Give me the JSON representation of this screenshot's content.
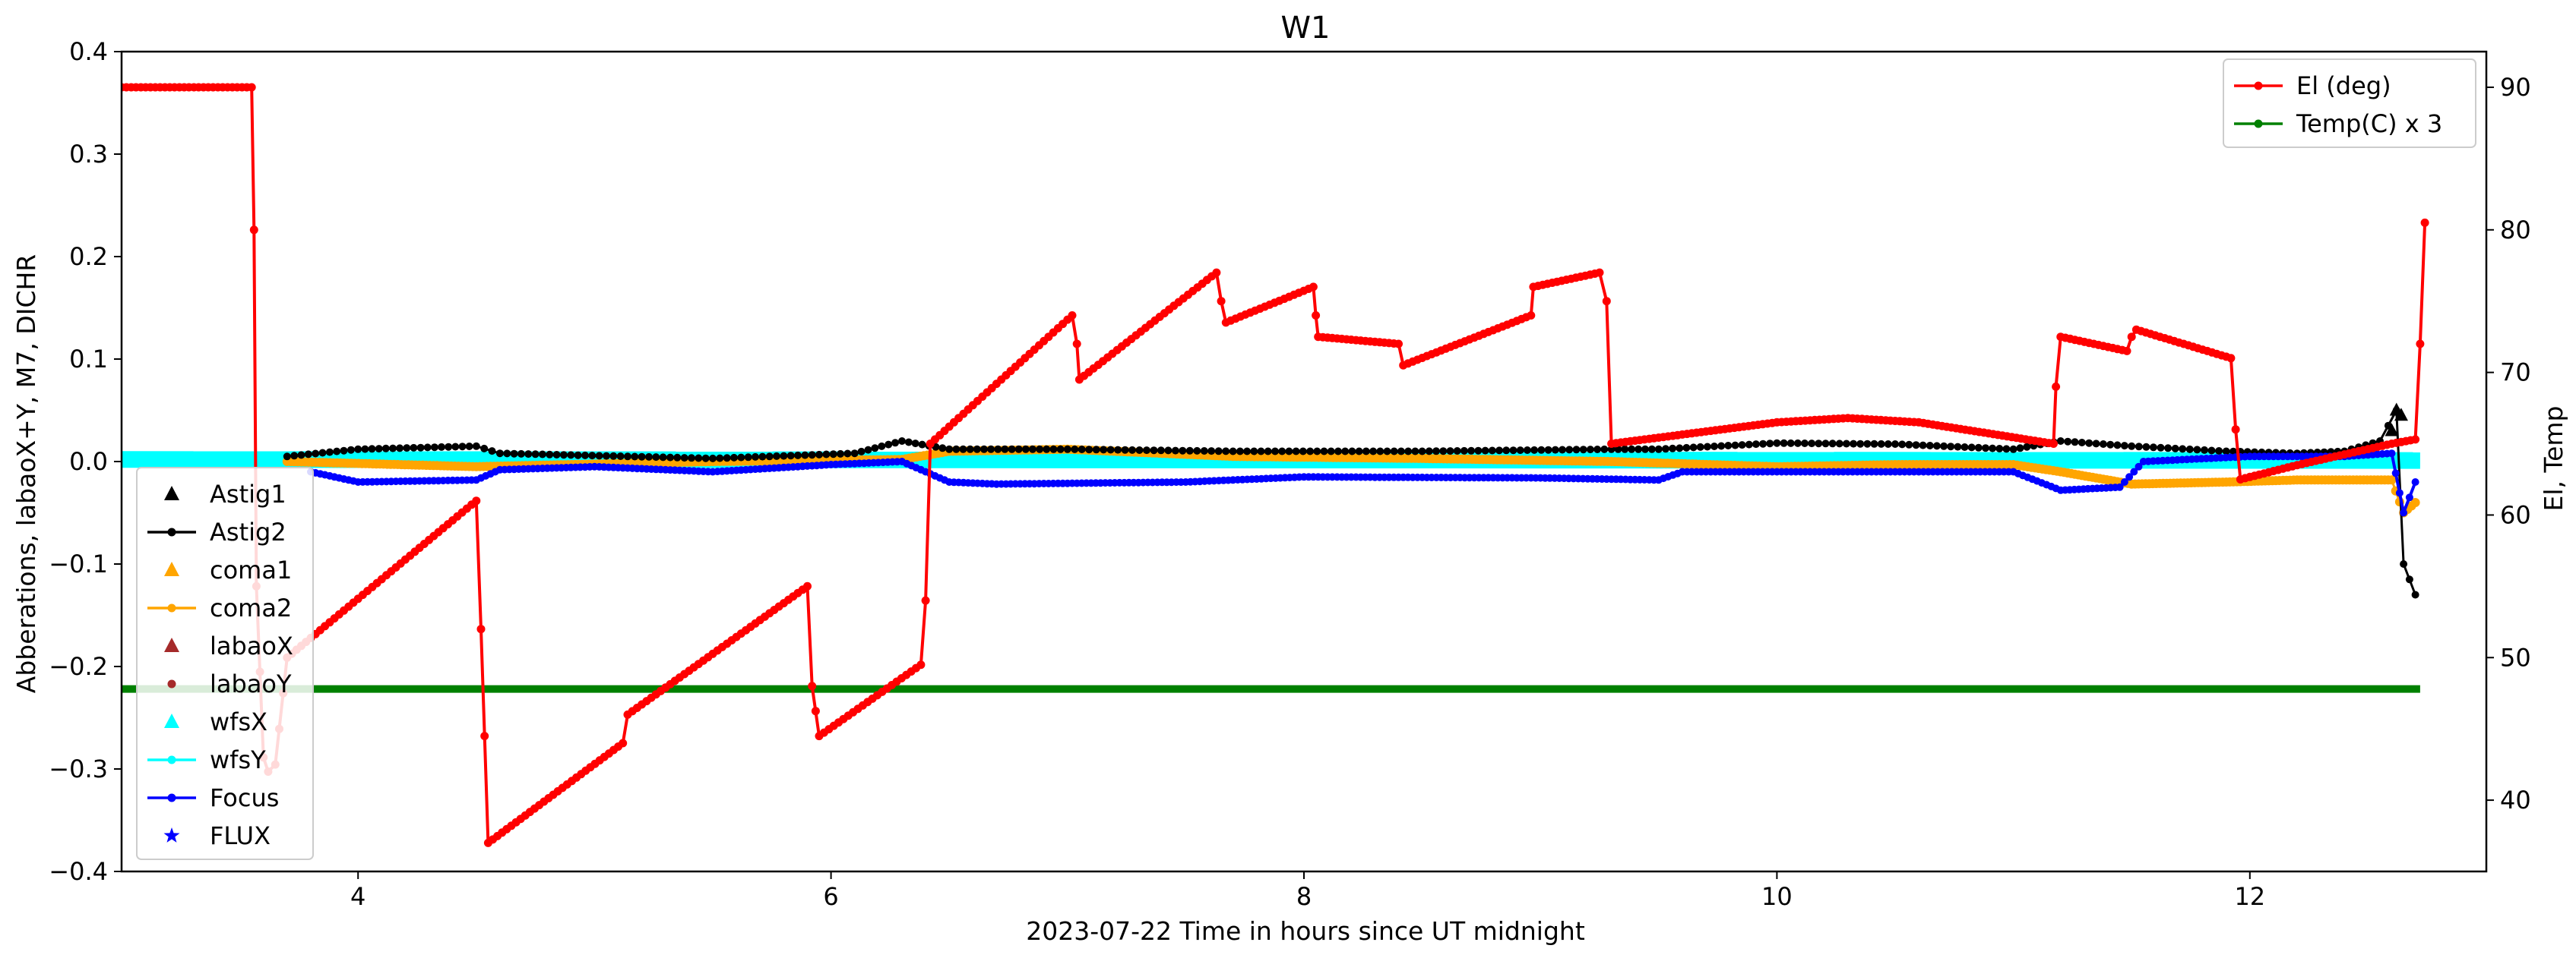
{
  "chart_data": {
    "type": "line",
    "title": "W1",
    "xlabel": "2023-07-22  Time in hours since UT midnight",
    "ylabel_left": "Abberations, labaoX+Y, M7, DICHR",
    "ylabel_right": "El, Temp",
    "xlim": [
      3.0,
      13.0
    ],
    "ylim_left": [
      -0.4,
      0.4
    ],
    "ylim_right": [
      35,
      92.5
    ],
    "x_ticks": [
      "4",
      "6",
      "8",
      "10",
      "12"
    ],
    "y_left_ticks": [
      "0.4",
      "0.3",
      "0.2",
      "0.1",
      "0.0",
      "−0.1",
      "−0.2",
      "−0.3",
      "−0.4"
    ],
    "y_right_ticks": [
      "90",
      "80",
      "70",
      "60",
      "50",
      "40"
    ],
    "legend_left": {
      "placement": "lower-left",
      "entries": [
        {
          "label": "Astig1",
          "marker": "triangle",
          "color": "#000000",
          "line": false
        },
        {
          "label": "Astig2",
          "marker": "dot",
          "color": "#000000",
          "line": true
        },
        {
          "label": "coma1",
          "marker": "triangle",
          "color": "#ffa500",
          "line": false
        },
        {
          "label": "coma2",
          "marker": "dot",
          "color": "#ffa500",
          "line": true
        },
        {
          "label": "labaoX",
          "marker": "triangle",
          "color": "#a52a2a",
          "line": false
        },
        {
          "label": "labaoY",
          "marker": "dot",
          "color": "#a52a2a",
          "line": false
        },
        {
          "label": "wfsX",
          "marker": "triangle",
          "color": "#00ffff",
          "line": false
        },
        {
          "label": "wfsY",
          "marker": "dot",
          "color": "#00ffff",
          "line": true
        },
        {
          "label": "Focus",
          "marker": "dot",
          "color": "#0000ff",
          "line": true
        },
        {
          "label": "FLUX",
          "marker": "star",
          "color": "#0000ff",
          "line": false
        }
      ]
    },
    "legend_right": {
      "placement": "top-right",
      "entries": [
        {
          "label": "El (deg)",
          "marker": "dot",
          "color": "#ff0000",
          "line": true
        },
        {
          "label": "Temp(C) x 3",
          "marker": "dot",
          "color": "#008000",
          "line": true
        }
      ]
    },
    "series": [
      {
        "name": "El (deg)",
        "axis": "right",
        "color": "#ff0000",
        "x": [
          3.0,
          3.55,
          3.56,
          3.57,
          3.6,
          3.62,
          3.65,
          3.7,
          4.5,
          4.52,
          4.55,
          5.12,
          5.14,
          5.9,
          5.92,
          5.95,
          6.38,
          6.4,
          6.42,
          7.02,
          7.04,
          7.05,
          7.63,
          7.65,
          7.67,
          8.04,
          8.05,
          8.06,
          8.4,
          8.42,
          8.96,
          8.97,
          9.25,
          9.28,
          9.3,
          10.0,
          10.3,
          10.6,
          11.17,
          11.18,
          11.2,
          11.48,
          11.5,
          11.52,
          11.92,
          11.94,
          11.96,
          12.2,
          12.6,
          12.7,
          12.72,
          12.74
        ],
        "y": [
          90,
          90,
          80,
          55,
          43,
          42,
          42.5,
          50,
          61,
          52,
          37,
          44,
          46,
          55,
          48,
          44.5,
          49.5,
          54,
          65,
          74,
          72,
          69.5,
          77,
          75,
          73.5,
          76,
          74,
          72.5,
          72,
          70.5,
          74,
          76,
          77,
          75,
          65,
          66.5,
          66.8,
          66.5,
          65,
          69,
          72.5,
          71.5,
          72.5,
          73,
          71,
          66,
          62.5,
          63.5,
          65,
          65.3,
          72,
          80.5
        ]
      },
      {
        "name": "Temp(C) x 3",
        "axis": "right",
        "color": "#008000",
        "x": [
          3.0,
          12.72
        ],
        "y": [
          47.8,
          47.8
        ]
      },
      {
        "name": "Astig2",
        "axis": "left",
        "color": "#000000",
        "x": [
          3.7,
          4.0,
          4.5,
          4.6,
          5.5,
          6.1,
          6.3,
          6.5,
          7.0,
          7.7,
          8.5,
          9.3,
          9.5,
          10.0,
          10.5,
          11.0,
          11.2,
          11.5,
          11.9,
          12.2,
          12.4,
          12.55,
          12.62,
          12.65,
          12.7
        ],
        "y": [
          0.005,
          0.012,
          0.015,
          0.008,
          0.003,
          0.008,
          0.02,
          0.012,
          0.012,
          0.01,
          0.01,
          0.012,
          0.012,
          0.018,
          0.017,
          0.012,
          0.02,
          0.015,
          0.01,
          0.008,
          0.01,
          0.02,
          0.05,
          -0.1,
          -0.13
        ]
      },
      {
        "name": "coma2",
        "axis": "left",
        "color": "#ffa500",
        "x": [
          3.7,
          4.5,
          5.5,
          6.3,
          6.5,
          7.0,
          7.7,
          8.5,
          9.3,
          10.0,
          10.5,
          11.0,
          11.2,
          11.5,
          11.9,
          12.2,
          12.6,
          12.65,
          12.7
        ],
        "y": [
          0.0,
          -0.005,
          0.0,
          0.002,
          0.01,
          0.012,
          0.005,
          0.003,
          0.0,
          -0.005,
          -0.003,
          -0.003,
          -0.01,
          -0.022,
          -0.02,
          -0.018,
          -0.018,
          -0.05,
          -0.04
        ]
      },
      {
        "name": "wfsY",
        "axis": "left",
        "color": "#00ffff",
        "x": [
          3.0,
          12.72
        ],
        "y": [
          0.002,
          0.001
        ]
      },
      {
        "name": "Focus",
        "axis": "left",
        "color": "#0000ff",
        "x": [
          3.8,
          4.0,
          4.5,
          4.6,
          5.0,
          5.5,
          6.0,
          6.3,
          6.5,
          6.7,
          7.5,
          8.0,
          9.0,
          9.5,
          9.6,
          10.0,
          11.0,
          11.2,
          11.45,
          11.55,
          12.0,
          12.4,
          12.6,
          12.65,
          12.7
        ],
        "y": [
          -0.01,
          -0.02,
          -0.018,
          -0.008,
          -0.005,
          -0.01,
          -0.003,
          0.0,
          -0.02,
          -0.022,
          -0.02,
          -0.015,
          -0.016,
          -0.018,
          -0.01,
          -0.01,
          -0.01,
          -0.028,
          -0.025,
          0.0,
          0.005,
          0.005,
          0.008,
          -0.05,
          -0.02
        ]
      }
    ]
  }
}
